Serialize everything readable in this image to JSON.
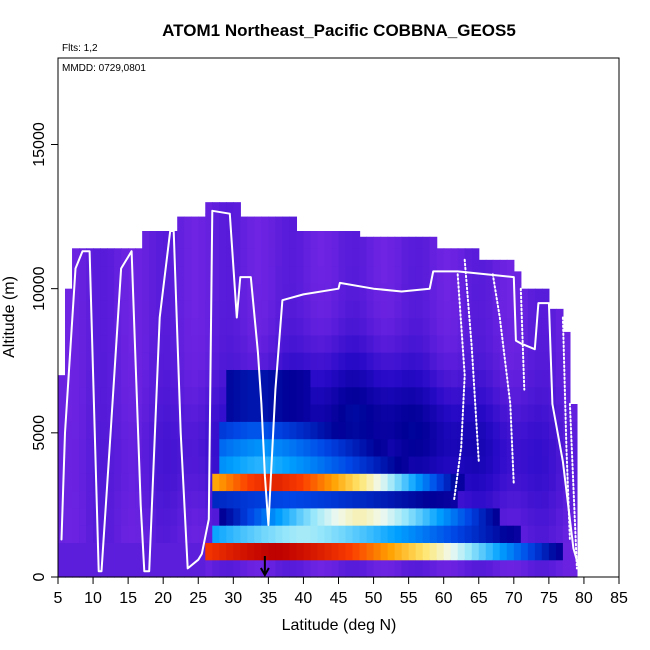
{
  "chart_data": {
    "type": "heatmap",
    "title": "ATOM1 Northeast_Pacific COBBNA_GEOS5",
    "flights_label": "Flts: 1,2",
    "mmdd_label": "MMDD: 0729,0801",
    "xlabel": "Latitude (deg N)",
    "ylabel": "Altitude (m)",
    "xlim": [
      5,
      85
    ],
    "ylim": [
      0,
      18000
    ],
    "x_ticks": [
      "5",
      "10",
      "15",
      "20",
      "25",
      "30",
      "35",
      "40",
      "45",
      "50",
      "55",
      "60",
      "65",
      "70",
      "75",
      "80",
      "85"
    ],
    "y_ticks": [
      "0",
      "5000",
      "10000",
      "15000"
    ],
    "grid": false,
    "marker_arrow_latitude": 34.5,
    "colors": {
      "low": "#7a2bd8",
      "background_purple": "#6a22e0",
      "track": "#ffffff"
    },
    "heatmap_columns": [
      {
        "lat_min": 5,
        "lat_max": 6.5,
        "top": 7000
      },
      {
        "lat_min": 6.5,
        "lat_max": 7.5,
        "top": 10000
      },
      {
        "lat_min": 7.5,
        "lat_max": 14,
        "top": 11400
      },
      {
        "lat_min": 14,
        "lat_max": 14.5,
        "top": 11400
      },
      {
        "lat_min": 14.5,
        "lat_max": 17.5,
        "top": 11400
      },
      {
        "lat_min": 17.5,
        "lat_max": 22.5,
        "top": 12000
      },
      {
        "lat_min": 22.5,
        "lat_max": 26,
        "top": 12500
      },
      {
        "lat_min": 26,
        "lat_max": 31.5,
        "top": 13000
      },
      {
        "lat_min": 31.5,
        "lat_max": 39,
        "top": 12500
      },
      {
        "lat_min": 39,
        "lat_max": 48,
        "top": 12000
      },
      {
        "lat_min": 48,
        "lat_max": 59,
        "top": 11800
      },
      {
        "lat_min": 59,
        "lat_max": 65,
        "top": 11400
      },
      {
        "lat_min": 65,
        "lat_max": 70,
        "top": 11000
      },
      {
        "lat_min": 70,
        "lat_max": 71.5,
        "top": 10600
      },
      {
        "lat_min": 71.5,
        "lat_max": 75,
        "top": 10000
      },
      {
        "lat_min": 75,
        "lat_max": 77,
        "top": 9300
      },
      {
        "lat_min": 77,
        "lat_max": 78.5,
        "top": 8500
      },
      {
        "lat_min": 78.5,
        "lat_max": 79.3,
        "top": 6000
      }
    ],
    "plume_bands": [
      {
        "alt_min": 600,
        "alt_max": 1400,
        "lat_min": 26,
        "lat_max": 79,
        "peak_lat": 36,
        "intensity": 1.0
      },
      {
        "alt_min": 1400,
        "alt_max": 2000,
        "lat_min": 27,
        "lat_max": 74,
        "peak_lat": 40,
        "intensity": 0.45
      },
      {
        "alt_min": 2000,
        "alt_max": 2600,
        "lat_min": 27,
        "lat_max": 70,
        "peak_lat": 48,
        "intensity": 0.55
      },
      {
        "alt_min": 2600,
        "alt_max": 3200,
        "lat_min": 27,
        "lat_max": 68,
        "peak_lat": 38,
        "intensity": 0.2
      },
      {
        "alt_min": 3200,
        "alt_max": 3800,
        "lat_min": 27,
        "lat_max": 64,
        "peak_lat": 36,
        "intensity": 0.9
      },
      {
        "alt_min": 3800,
        "alt_max": 4400,
        "lat_min": 28,
        "lat_max": 58,
        "peak_lat": 34,
        "intensity": 0.35
      },
      {
        "alt_min": 4400,
        "alt_max": 5000,
        "lat_min": 28,
        "lat_max": 55,
        "peak_lat": 34,
        "intensity": 0.3
      },
      {
        "alt_min": 5000,
        "alt_max": 5600,
        "lat_min": 28,
        "lat_max": 50,
        "peak_lat": 33,
        "intensity": 0.22
      },
      {
        "alt_min": 5600,
        "alt_max": 7000,
        "lat_min": 29,
        "lat_max": 45,
        "peak_lat": 33,
        "intensity": 0.12
      }
    ],
    "flight_track": {
      "x": [
        5.5,
        6.0,
        7.5,
        8.5,
        9.5,
        10.8,
        11.2,
        12.5,
        14.0,
        15.5,
        16.8,
        17.3,
        18.0,
        19.5,
        21.0,
        21.5,
        22.5,
        23.5,
        25.0,
        25.5,
        26.5,
        27.0,
        29.5,
        30.5,
        31.0,
        32.5,
        33.5,
        34.0,
        34.5,
        35.0,
        36.0,
        37.0,
        40.0,
        45.0,
        45.2,
        50.0,
        54.0,
        58.0,
        58.5,
        62.0,
        66.0,
        70.0,
        70.3,
        71.0,
        73.0,
        73.5,
        75.0,
        75.5,
        77.0,
        78.5,
        79.2
      ],
      "y": [
        1300,
        5000,
        10700,
        11300,
        11300,
        200,
        200,
        5000,
        10700,
        11300,
        2500,
        200,
        200,
        9000,
        12000,
        12000,
        5000,
        300,
        600,
        800,
        2000,
        12700,
        12600,
        9000,
        10400,
        10400,
        7800,
        6000,
        3500,
        1800,
        6500,
        9600,
        9800,
        10000,
        10200,
        10000,
        9900,
        10000,
        10600,
        10600,
        10500,
        10400,
        8200,
        8100,
        7900,
        9500,
        9500,
        6000,
        4000,
        1000,
        400
      ]
    },
    "descent_profiles": [
      {
        "x": [
          62.0,
          63.0,
          62.5,
          61.5
        ],
        "y": [
          10500,
          7000,
          4500,
          2700
        ]
      },
      {
        "x": [
          63.0,
          64.0,
          65.0
        ],
        "y": [
          11000,
          8000,
          4000
        ]
      },
      {
        "x": [
          67.0,
          68.0,
          69.5,
          70.0
        ],
        "y": [
          10500,
          9000,
          6000,
          3200
        ]
      },
      {
        "x": [
          71.0,
          71.5
        ],
        "y": [
          10000,
          6500
        ]
      },
      {
        "x": [
          77.0,
          77.5,
          78.0
        ],
        "y": [
          9000,
          4500,
          1300
        ]
      },
      {
        "x": [
          78.0,
          79.0
        ],
        "y": [
          6000,
          300
        ]
      }
    ]
  }
}
